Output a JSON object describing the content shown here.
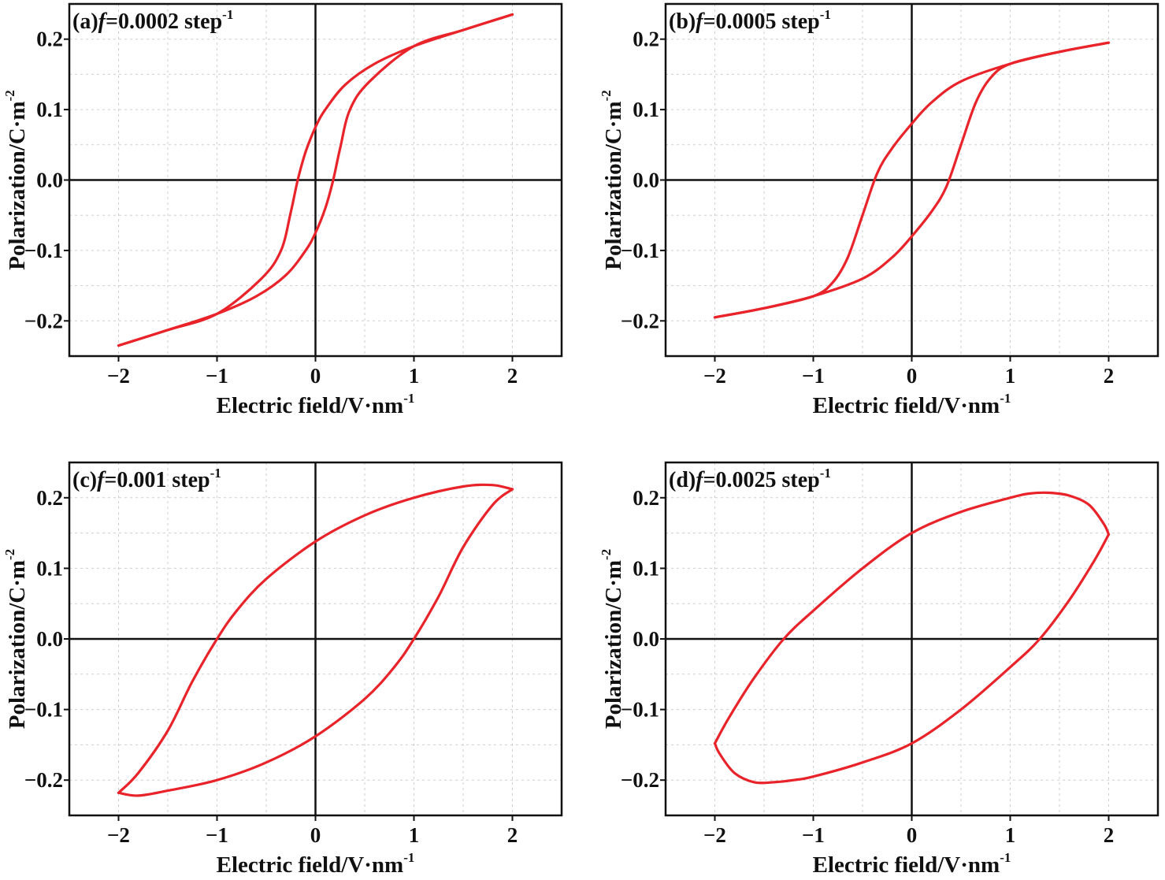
{
  "chart_data": [
    {
      "type": "line",
      "panel_label": "(a)",
      "title": "f=0.0002 step-1",
      "title_parts": {
        "letter": "(a)",
        "var": "f",
        "rest": "=0.0002 step",
        "sup": "-1"
      },
      "xlabel": "Electric field/V·nm",
      "xlabel_sup": "-1",
      "ylabel": "Polarization/C·m",
      "ylabel_sup": "-2",
      "xlim": [
        -2.5,
        2.5
      ],
      "ylim": [
        -0.25,
        0.25
      ],
      "xticks": [
        -2,
        -1,
        0,
        1,
        2
      ],
      "xtick_labels": [
        "−2",
        "−1",
        "0",
        "1",
        "2"
      ],
      "yticks": [
        -0.2,
        -0.1,
        0.0,
        0.1,
        0.2
      ],
      "ytick_labels": [
        "−0.2",
        "−0.1",
        "0.0",
        "0.1",
        "0.2"
      ],
      "grid": true,
      "color": "#e8232a",
      "series": [
        {
          "x": [
            2.0,
            1.5,
            1.0,
            0.6,
            0.3,
            0.1,
            0.0,
            -0.1,
            -0.18,
            -0.25,
            -0.35,
            -0.55,
            -1.0,
            -1.5,
            -2.0
          ],
          "y": [
            0.235,
            0.213,
            0.19,
            0.165,
            0.135,
            0.1,
            0.075,
            0.04,
            0.0,
            -0.045,
            -0.1,
            -0.14,
            -0.19,
            -0.213,
            -0.235
          ]
        },
        {
          "x": [
            -2.0,
            -1.5,
            -1.0,
            -0.6,
            -0.3,
            -0.1,
            0.0,
            0.1,
            0.18,
            0.25,
            0.35,
            0.55,
            1.0,
            1.5,
            2.0
          ],
          "y": [
            -0.235,
            -0.213,
            -0.19,
            -0.165,
            -0.135,
            -0.1,
            -0.075,
            -0.04,
            0.0,
            0.045,
            0.1,
            0.14,
            0.19,
            0.213,
            0.235
          ]
        }
      ]
    },
    {
      "type": "line",
      "panel_label": "(b)",
      "title": "f=0.0005 step-1",
      "title_parts": {
        "letter": "(b)",
        "var": "f",
        "rest": "=0.0005 step",
        "sup": "-1"
      },
      "xlabel": "Electric field/V·nm",
      "xlabel_sup": "-1",
      "ylabel": "Polarization/C·m",
      "ylabel_sup": "-2",
      "xlim": [
        -2.5,
        2.5
      ],
      "ylim": [
        -0.25,
        0.25
      ],
      "xticks": [
        -2,
        -1,
        0,
        1,
        2
      ],
      "xtick_labels": [
        "−2",
        "−1",
        "0",
        "1",
        "2"
      ],
      "yticks": [
        -0.2,
        -0.1,
        0.0,
        0.1,
        0.2
      ],
      "ytick_labels": [
        "−0.2",
        "−0.1",
        "0.0",
        "0.1",
        "0.2"
      ],
      "grid": true,
      "color": "#e8232a",
      "series": [
        {
          "x": [
            2.0,
            1.5,
            1.0,
            0.5,
            0.2,
            0.0,
            -0.2,
            -0.35,
            -0.5,
            -0.65,
            -0.8,
            -1.0,
            -1.5,
            -2.0
          ],
          "y": [
            0.195,
            0.182,
            0.165,
            0.14,
            0.11,
            0.08,
            0.045,
            0.01,
            -0.05,
            -0.11,
            -0.145,
            -0.165,
            -0.182,
            -0.195
          ]
        },
        {
          "x": [
            -2.0,
            -1.5,
            -1.0,
            -0.5,
            -0.2,
            0.0,
            0.2,
            0.35,
            0.5,
            0.65,
            0.8,
            1.0,
            1.5,
            2.0
          ],
          "y": [
            -0.195,
            -0.182,
            -0.165,
            -0.14,
            -0.11,
            -0.08,
            -0.045,
            -0.01,
            0.05,
            0.11,
            0.145,
            0.165,
            0.182,
            0.195
          ]
        }
      ]
    },
    {
      "type": "line",
      "panel_label": "(c)",
      "title": "f=0.001 step-1",
      "title_parts": {
        "letter": "(c)",
        "var": "f",
        "rest": "=0.001 step",
        "sup": "-1"
      },
      "xlabel": "Electric field/V·nm",
      "xlabel_sup": "-1",
      "ylabel": "Polarization/C·m",
      "ylabel_sup": "-2",
      "xlim": [
        -2.5,
        2.5
      ],
      "ylim": [
        -0.25,
        0.25
      ],
      "xticks": [
        -2,
        -1,
        0,
        1,
        2
      ],
      "xtick_labels": [
        "−2",
        "−1",
        "0",
        "1",
        "2"
      ],
      "yticks": [
        -0.2,
        -0.1,
        0.0,
        0.1,
        0.2
      ],
      "ytick_labels": [
        "−0.2",
        "−0.1",
        "0.0",
        "0.1",
        "0.2"
      ],
      "grid": true,
      "color": "#e8232a",
      "series": [
        {
          "x": [
            2.0,
            1.8,
            1.5,
            1.0,
            0.5,
            0.0,
            -0.5,
            -0.8,
            -1.0,
            -1.25,
            -1.5,
            -1.8,
            -2.0
          ],
          "y": [
            0.212,
            0.218,
            0.216,
            0.2,
            0.175,
            0.138,
            0.085,
            0.04,
            0.0,
            -0.06,
            -0.13,
            -0.19,
            -0.218
          ]
        },
        {
          "x": [
            -2.0,
            -1.8,
            -1.5,
            -1.0,
            -0.5,
            0.0,
            0.5,
            0.8,
            1.0,
            1.25,
            1.5,
            1.8,
            2.0
          ],
          "y": [
            -0.218,
            -0.222,
            -0.215,
            -0.2,
            -0.175,
            -0.138,
            -0.085,
            -0.04,
            0.0,
            0.06,
            0.13,
            0.19,
            0.212
          ]
        }
      ]
    },
    {
      "type": "line",
      "panel_label": "(d)",
      "title": "f=0.0025 step-1",
      "title_parts": {
        "letter": "(d)",
        "var": "f",
        "rest": "=0.0025 step",
        "sup": "-1"
      },
      "xlabel": "Electric field/V·nm",
      "xlabel_sup": "-1",
      "ylabel": "Polarization/C·m",
      "ylabel_sup": "-2",
      "xlim": [
        -2.5,
        2.5
      ],
      "ylim": [
        -0.25,
        0.25
      ],
      "xticks": [
        -2,
        -1,
        0,
        1,
        2
      ],
      "xtick_labels": [
        "−2",
        "−1",
        "0",
        "1",
        "2"
      ],
      "yticks": [
        -0.2,
        -0.1,
        0.0,
        0.1,
        0.2
      ],
      "ytick_labels": [
        "−0.2",
        "−0.1",
        "0.0",
        "0.1",
        "0.2"
      ],
      "grid": true,
      "color": "#e8232a",
      "series": [
        {
          "x": [
            2.0,
            1.95,
            1.8,
            1.6,
            1.4,
            1.2,
            1.0,
            0.5,
            0.0,
            -0.5,
            -1.0,
            -1.3,
            -1.6,
            -1.85,
            -2.0
          ],
          "y": [
            0.148,
            0.163,
            0.19,
            0.203,
            0.207,
            0.206,
            0.2,
            0.18,
            0.15,
            0.1,
            0.04,
            0.0,
            -0.055,
            -0.11,
            -0.148
          ]
        },
        {
          "x": [
            -2.0,
            -1.95,
            -1.8,
            -1.6,
            -1.4,
            -1.2,
            -1.0,
            -0.5,
            0.0,
            0.5,
            1.0,
            1.3,
            1.6,
            1.85,
            2.0
          ],
          "y": [
            -0.148,
            -0.163,
            -0.19,
            -0.203,
            -0.203,
            -0.2,
            -0.195,
            -0.175,
            -0.148,
            -0.1,
            -0.04,
            0.0,
            0.055,
            0.11,
            0.148
          ]
        }
      ]
    }
  ]
}
